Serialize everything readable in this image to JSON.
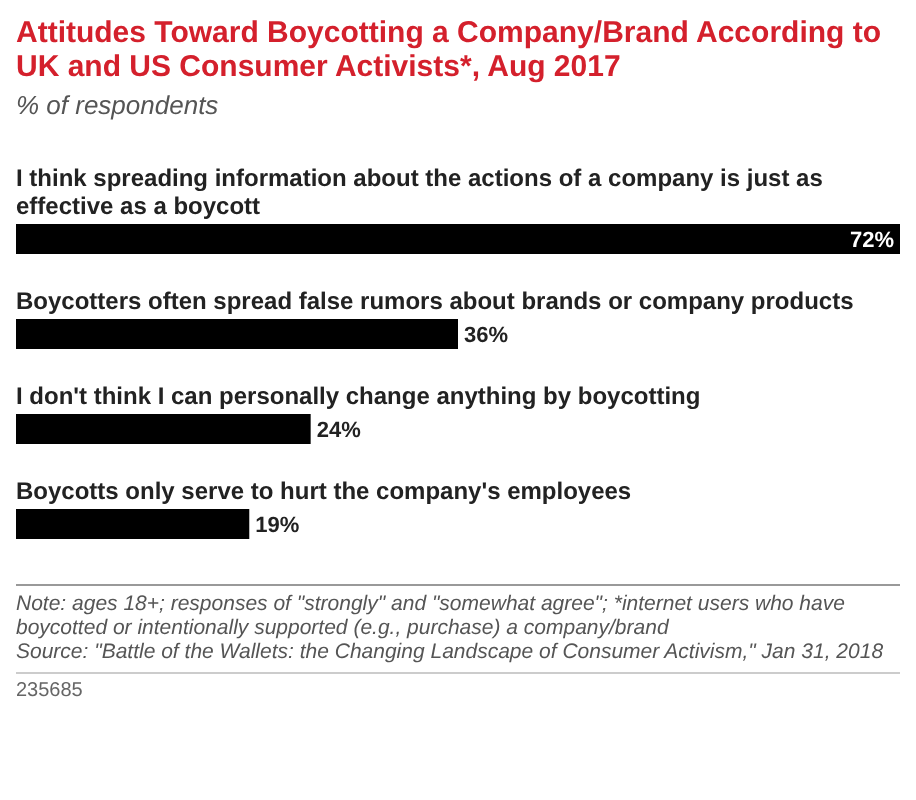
{
  "chart_data": {
    "type": "bar",
    "orientation": "horizontal",
    "title": "Attitudes Toward Boycotting a Company/Brand According to UK and US Consumer Activists*, Aug 2017",
    "subtitle": "% of respondents",
    "categories": [
      "I think spreading information about the actions of a company is just as effective as a boycott",
      "Boycotters often spread false rumors about brands or company products",
      "I don't think I can personally change anything by boycotting",
      "Boycotts only serve to hurt the company's employees"
    ],
    "values": [
      72,
      36,
      24,
      19
    ],
    "color": "#000000",
    "data_labels": true,
    "value_labels": [
      "72%",
      "36%",
      "24%",
      "19%"
    ],
    "annotations": [
      "Note: ages 18+; responses of \"strongly\" and \"somewhat agree\"; *internet users who have boycotted or intentionally supported (e.g., purchase) a company/brand",
      "Source: \"Battle of the Wallets: the Changing Landscape of Consumer Activism,\" Jan 31, 2018",
      "235685"
    ]
  }
}
